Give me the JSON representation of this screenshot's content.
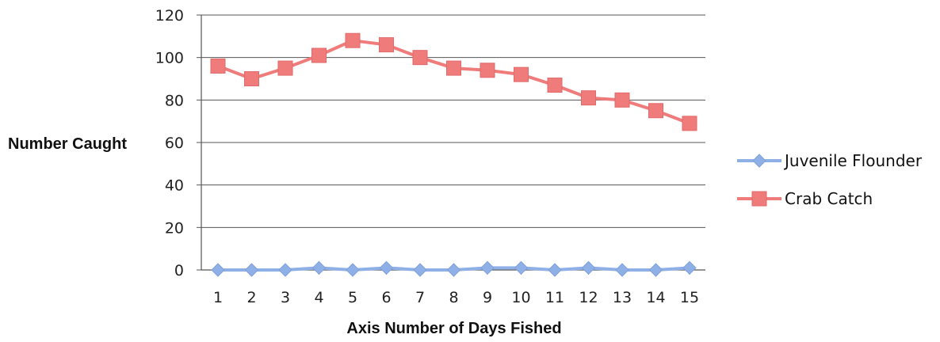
{
  "chart_data": {
    "type": "line",
    "title": "",
    "xlabel": "Axis Number of Days Fished",
    "ylabel": "Number Caught",
    "categories": [
      "1",
      "2",
      "3",
      "4",
      "5",
      "6",
      "7",
      "8",
      "9",
      "10",
      "11",
      "12",
      "13",
      "14",
      "15"
    ],
    "ylim": [
      0,
      120
    ],
    "yticks": [
      "0",
      "20",
      "40",
      "60",
      "80",
      "100",
      "120"
    ],
    "grid": true,
    "legend_position": "right",
    "series": [
      {
        "name": "Juvenile Flounder",
        "color": "#8fb0e6",
        "marker": "diamond",
        "values": [
          0,
          0,
          0,
          1,
          0,
          1,
          0,
          0,
          1,
          1,
          0,
          1,
          0,
          0,
          1
        ]
      },
      {
        "name": "Crab Catch",
        "color": "#ef7b7b",
        "marker": "square",
        "values": [
          96,
          90,
          95,
          101,
          108,
          106,
          100,
          95,
          94,
          92,
          87,
          81,
          80,
          75,
          69
        ]
      }
    ]
  }
}
